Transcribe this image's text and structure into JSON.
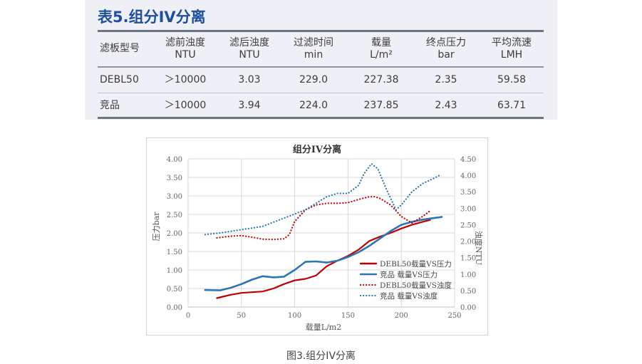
{
  "table": {
    "title": "表5.组分IV分离",
    "headers": [
      {
        "name": "滤板型号",
        "unit": ""
      },
      {
        "name": "滤前浊度",
        "unit": "NTU"
      },
      {
        "name": "滤后浊度",
        "unit": "NTU"
      },
      {
        "name": "过滤时间",
        "unit": "min"
      },
      {
        "name": "载量",
        "unit": "L/m²"
      },
      {
        "name": "终点压力",
        "unit": "bar"
      },
      {
        "name": "平均流速",
        "unit": "LMH"
      }
    ],
    "rows": [
      [
        "DEBL50",
        "＞10000",
        "3.03",
        "229.0",
        "227.38",
        "2.35",
        "59.58"
      ],
      [
        "竞品",
        "＞10000",
        "3.94",
        "224.0",
        "237.85",
        "2.43",
        "63.71"
      ]
    ]
  },
  "chart_data": {
    "type": "line",
    "title": "组分IV分离",
    "xlabel": "载量L/m2",
    "ylabel": "压力bar",
    "y2label": "浊度NTU",
    "xlim": [
      0,
      250
    ],
    "ylim": [
      0,
      4.0
    ],
    "y2lim": [
      0,
      4.5
    ],
    "xticks": [
      "0",
      "50",
      "100",
      "150",
      "200",
      "250"
    ],
    "yticks": [
      "0.00",
      "0.50",
      "1.00",
      "1.50",
      "2.00",
      "2.50",
      "3.00",
      "3.50",
      "4.00"
    ],
    "y2ticks": [
      "0.00",
      "0.50",
      "1.00",
      "1.50",
      "2.00",
      "2.50",
      "3.00",
      "3.50",
      "4.00",
      "4.50"
    ],
    "grid": true,
    "legend_position": "bottom-right",
    "series": [
      {
        "name": "DEBL50载量VS压力",
        "axis": "left",
        "style": "solid",
        "color": "#c00000",
        "x": [
          27,
          40,
          50,
          60,
          70,
          80,
          90,
          100,
          110,
          120,
          130,
          140,
          150,
          160,
          170,
          180,
          190,
          200,
          210,
          220,
          227
        ],
        "y": [
          0.24,
          0.33,
          0.38,
          0.4,
          0.42,
          0.5,
          0.62,
          0.72,
          0.76,
          0.85,
          1.1,
          1.25,
          1.38,
          1.55,
          1.78,
          1.9,
          2.0,
          2.12,
          2.22,
          2.3,
          2.35
        ]
      },
      {
        "name": "竞品 载量VS压力",
        "axis": "left",
        "style": "solid",
        "color": "#2e75b6",
        "x": [
          16,
          30,
          40,
          50,
          60,
          70,
          80,
          90,
          100,
          110,
          120,
          130,
          140,
          150,
          160,
          170,
          180,
          190,
          200,
          210,
          220,
          230,
          238
        ],
        "y": [
          0.46,
          0.45,
          0.52,
          0.62,
          0.74,
          0.83,
          0.8,
          0.82,
          1.0,
          1.22,
          1.23,
          1.2,
          1.25,
          1.35,
          1.48,
          1.65,
          1.85,
          2.05,
          2.22,
          2.3,
          2.36,
          2.4,
          2.43
        ]
      },
      {
        "name": "DEBL50载量VS浊度",
        "axis": "right",
        "style": "dotted",
        "color": "#c00000",
        "x": [
          27,
          40,
          50,
          60,
          70,
          80,
          90,
          95,
          100,
          110,
          120,
          130,
          140,
          150,
          160,
          170,
          175,
          180,
          190,
          200,
          210,
          220,
          227
        ],
        "y": [
          2.1,
          2.15,
          2.17,
          2.12,
          2.06,
          2.05,
          2.07,
          2.2,
          2.6,
          2.95,
          3.1,
          3.15,
          3.15,
          3.17,
          3.27,
          3.35,
          3.35,
          3.3,
          3.1,
          2.75,
          2.55,
          2.75,
          2.92
        ]
      },
      {
        "name": "竞品 载量VS浊度",
        "axis": "right",
        "style": "dotted",
        "color": "#2e75b6",
        "x": [
          16,
          30,
          50,
          70,
          90,
          110,
          120,
          130,
          140,
          150,
          160,
          165,
          172,
          178,
          185,
          195,
          200,
          210,
          220,
          230,
          236
        ],
        "y": [
          2.2,
          2.25,
          2.35,
          2.45,
          2.7,
          2.95,
          3.15,
          3.35,
          3.45,
          3.45,
          3.7,
          4.05,
          4.35,
          4.2,
          3.65,
          2.95,
          3.1,
          3.5,
          3.75,
          3.9,
          4.0
        ]
      }
    ]
  },
  "caption": "图3.组分IV分离"
}
